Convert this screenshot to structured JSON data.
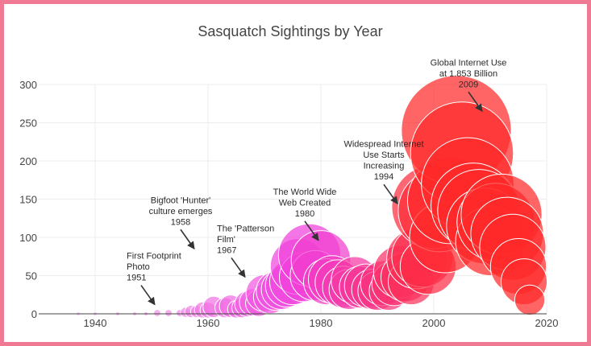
{
  "chart_data": {
    "type": "scatter",
    "title": "Sasquatch Sightings by Year",
    "xlabel": "",
    "ylabel": "",
    "xlim": [
      1930,
      2020
    ],
    "ylim": [
      0,
      300
    ],
    "x_ticks": [
      1940,
      1960,
      1980,
      2000,
      2020
    ],
    "y_ticks": [
      0,
      50,
      100,
      150,
      200,
      250,
      300
    ],
    "grid": true,
    "bubble_size_encodes": "count",
    "color_scale": [
      "#f3c6f0",
      "#f040dd",
      "#ff2a2a"
    ],
    "points": [
      {
        "x": 1937,
        "y": 0
      },
      {
        "x": 1940,
        "y": 0
      },
      {
        "x": 1944,
        "y": 0
      },
      {
        "x": 1947,
        "y": 0
      },
      {
        "x": 1949,
        "y": 0
      },
      {
        "x": 1951,
        "y": 1
      },
      {
        "x": 1953,
        "y": 1
      },
      {
        "x": 1955,
        "y": 1
      },
      {
        "x": 1956,
        "y": 2
      },
      {
        "x": 1957,
        "y": 3
      },
      {
        "x": 1958,
        "y": 3
      },
      {
        "x": 1959,
        "y": 5
      },
      {
        "x": 1960,
        "y": 5
      },
      {
        "x": 1961,
        "y": 9
      },
      {
        "x": 1963,
        "y": 8
      },
      {
        "x": 1964,
        "y": 10
      },
      {
        "x": 1965,
        "y": 6
      },
      {
        "x": 1966,
        "y": 8
      },
      {
        "x": 1967,
        "y": 13
      },
      {
        "x": 1968,
        "y": 15
      },
      {
        "x": 1969,
        "y": 14
      },
      {
        "x": 1970,
        "y": 27
      },
      {
        "x": 1971,
        "y": 22
      },
      {
        "x": 1972,
        "y": 30
      },
      {
        "x": 1973,
        "y": 32
      },
      {
        "x": 1974,
        "y": 37
      },
      {
        "x": 1975,
        "y": 42
      },
      {
        "x": 1976,
        "y": 62
      },
      {
        "x": 1977,
        "y": 48
      },
      {
        "x": 1978,
        "y": 77
      },
      {
        "x": 1979,
        "y": 50
      },
      {
        "x": 1980,
        "y": 70
      },
      {
        "x": 1981,
        "y": 42
      },
      {
        "x": 1982,
        "y": 45
      },
      {
        "x": 1983,
        "y": 41
      },
      {
        "x": 1984,
        "y": 35
      },
      {
        "x": 1985,
        "y": 32
      },
      {
        "x": 1986,
        "y": 44
      },
      {
        "x": 1987,
        "y": 35
      },
      {
        "x": 1988,
        "y": 37
      },
      {
        "x": 1989,
        "y": 32
      },
      {
        "x": 1990,
        "y": 30
      },
      {
        "x": 1991,
        "y": 40
      },
      {
        "x": 1992,
        "y": 30
      },
      {
        "x": 1993,
        "y": 40
      },
      {
        "x": 1994,
        "y": 55
      },
      {
        "x": 1995,
        "y": 48
      },
      {
        "x": 1996,
        "y": 42
      },
      {
        "x": 1997,
        "y": 72
      },
      {
        "x": 1998,
        "y": 75
      },
      {
        "x": 1999,
        "y": 62
      },
      {
        "x": 2000,
        "y": 140
      },
      {
        "x": 2001,
        "y": 135
      },
      {
        "x": 2002,
        "y": 100
      },
      {
        "x": 2003,
        "y": 148
      },
      {
        "x": 2004,
        "y": 240
      },
      {
        "x": 2005,
        "y": 210
      },
      {
        "x": 2006,
        "y": 170
      },
      {
        "x": 2007,
        "y": 142
      },
      {
        "x": 2008,
        "y": 135
      },
      {
        "x": 2009,
        "y": 115
      },
      {
        "x": 2010,
        "y": 95
      },
      {
        "x": 2011,
        "y": 120
      },
      {
        "x": 2012,
        "y": 130
      },
      {
        "x": 2013,
        "y": 105
      },
      {
        "x": 2014,
        "y": 87
      },
      {
        "x": 2015,
        "y": 62
      },
      {
        "x": 2016,
        "y": 42
      },
      {
        "x": 2017,
        "y": 18
      }
    ],
    "annotations": [
      {
        "x": 1951,
        "y": 12,
        "text": [
          "First Footprint",
          "Photo",
          "1951"
        ],
        "align": "start"
      },
      {
        "x": 1958,
        "y": 85,
        "text": [
          "Bigfoot 'Hunter'",
          "culture emerges",
          "1958"
        ],
        "align": "middle"
      },
      {
        "x": 1967,
        "y": 48,
        "text": [
          "The 'Patterson",
          "Film'",
          "1967"
        ],
        "align": "start"
      },
      {
        "x": 1980,
        "y": 96,
        "text": [
          "The World Wide",
          "Web Created",
          "1980"
        ],
        "align": "middle"
      },
      {
        "x": 1994,
        "y": 144,
        "text": [
          "Widespread Internet",
          "Use Starts",
          "Increasing",
          "1994"
        ],
        "align": "middle"
      },
      {
        "x": 2009,
        "y": 265,
        "text": [
          "Global Internet Use",
          "at 1.853 Billion",
          "2009"
        ],
        "align": "middle"
      }
    ]
  }
}
